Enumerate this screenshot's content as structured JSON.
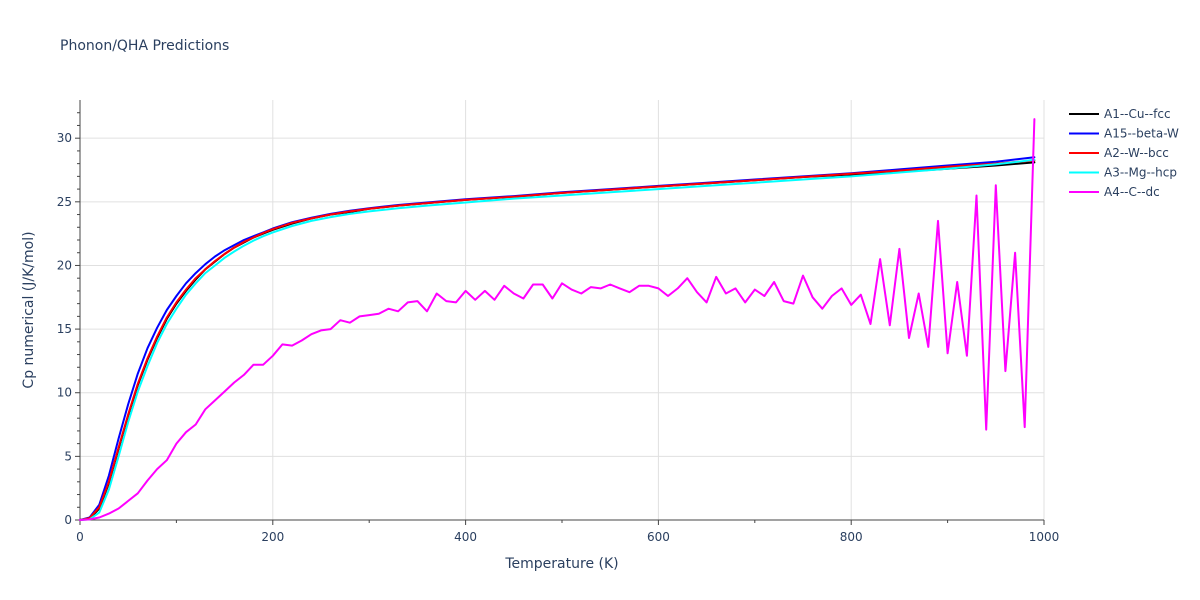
{
  "chart_data": {
    "type": "line",
    "title": "Phonon/QHA Predictions",
    "xlabel": "Temperature (K)",
    "ylabel": "Cp numerical (J/K/mol)",
    "xlim": [
      0,
      1000
    ],
    "ylim": [
      0,
      33
    ],
    "xticks": [
      0,
      200,
      400,
      600,
      800,
      1000
    ],
    "xtick_labels": [
      "0",
      "200",
      "400",
      "600",
      "800",
      "1000"
    ],
    "yticks": [
      0,
      5,
      10,
      15,
      20,
      25,
      30
    ],
    "ytick_labels": [
      "0",
      "5",
      "10",
      "15",
      "20",
      "25",
      "30"
    ],
    "grid": true,
    "legend_position": "top-right",
    "series": [
      {
        "name": "A1--Cu--fcc",
        "color": "#000000",
        "x": [
          0,
          10,
          20,
          30,
          40,
          50,
          60,
          70,
          80,
          90,
          100,
          110,
          120,
          130,
          140,
          150,
          160,
          170,
          180,
          190,
          200,
          220,
          240,
          260,
          280,
          300,
          330,
          360,
          400,
          450,
          500,
          550,
          600,
          650,
          700,
          750,
          800,
          850,
          900,
          950,
          990
        ],
        "y": [
          0,
          0.1,
          0.9,
          2.9,
          5.6,
          8.2,
          10.6,
          12.6,
          14.3,
          15.8,
          17.0,
          18.0,
          18.9,
          19.7,
          20.3,
          20.9,
          21.4,
          21.8,
          22.2,
          22.5,
          22.8,
          23.3,
          23.7,
          24.0,
          24.2,
          24.45,
          24.7,
          24.9,
          25.15,
          25.4,
          25.7,
          25.95,
          26.2,
          26.45,
          26.7,
          26.95,
          27.15,
          27.35,
          27.6,
          27.85,
          28.1
        ]
      },
      {
        "name": "A15--beta-W",
        "color": "#0000ff",
        "x": [
          0,
          10,
          20,
          30,
          40,
          50,
          60,
          70,
          80,
          90,
          100,
          110,
          120,
          130,
          140,
          150,
          160,
          170,
          180,
          190,
          200,
          220,
          240,
          260,
          280,
          300,
          330,
          360,
          400,
          450,
          500,
          550,
          600,
          650,
          700,
          750,
          800,
          850,
          900,
          950,
          990
        ],
        "y": [
          0,
          0.2,
          1.2,
          3.5,
          6.4,
          9.1,
          11.5,
          13.5,
          15.1,
          16.5,
          17.6,
          18.6,
          19.4,
          20.1,
          20.7,
          21.2,
          21.6,
          22.0,
          22.3,
          22.6,
          22.9,
          23.4,
          23.75,
          24.05,
          24.3,
          24.5,
          24.75,
          24.95,
          25.2,
          25.45,
          25.75,
          26.0,
          26.25,
          26.5,
          26.75,
          27.0,
          27.25,
          27.55,
          27.85,
          28.15,
          28.5
        ]
      },
      {
        "name": "A2--W--bcc",
        "color": "#ff0000",
        "x": [
          0,
          10,
          20,
          30,
          40,
          50,
          60,
          70,
          80,
          90,
          100,
          110,
          120,
          130,
          140,
          150,
          160,
          170,
          180,
          190,
          200,
          220,
          240,
          260,
          280,
          300,
          330,
          360,
          400,
          450,
          500,
          550,
          600,
          650,
          700,
          750,
          800,
          850,
          900,
          950,
          990
        ],
        "y": [
          0,
          0.15,
          1.0,
          3.0,
          5.7,
          8.3,
          10.7,
          12.7,
          14.4,
          15.9,
          17.1,
          18.1,
          19.0,
          19.7,
          20.35,
          20.9,
          21.4,
          21.85,
          22.2,
          22.55,
          22.85,
          23.35,
          23.7,
          24.0,
          24.25,
          24.45,
          24.7,
          24.9,
          25.15,
          25.4,
          25.7,
          25.95,
          26.2,
          26.45,
          26.7,
          26.95,
          27.2,
          27.45,
          27.75,
          28.0,
          28.25
        ]
      },
      {
        "name": "A3--Mg--hcp",
        "color": "#00ffff",
        "x": [
          0,
          10,
          20,
          30,
          40,
          50,
          60,
          70,
          80,
          90,
          100,
          110,
          120,
          130,
          140,
          150,
          160,
          170,
          180,
          190,
          200,
          220,
          240,
          260,
          280,
          300,
          330,
          360,
          400,
          450,
          500,
          550,
          600,
          650,
          700,
          750,
          800,
          850,
          900,
          950,
          990
        ],
        "y": [
          0,
          0.05,
          0.6,
          2.4,
          5.0,
          7.7,
          10.1,
          12.1,
          13.9,
          15.4,
          16.6,
          17.7,
          18.6,
          19.4,
          20.0,
          20.6,
          21.1,
          21.55,
          21.95,
          22.3,
          22.6,
          23.1,
          23.5,
          23.8,
          24.05,
          24.25,
          24.5,
          24.7,
          24.95,
          25.25,
          25.5,
          25.75,
          26.0,
          26.25,
          26.5,
          26.75,
          27.0,
          27.3,
          27.6,
          27.95,
          28.3
        ]
      },
      {
        "name": "A4--C--dc",
        "color": "#ff00ff",
        "x": [
          0,
          10,
          20,
          30,
          40,
          50,
          60,
          70,
          80,
          90,
          100,
          110,
          120,
          130,
          140,
          150,
          160,
          170,
          180,
          190,
          200,
          210,
          220,
          230,
          240,
          250,
          260,
          270,
          280,
          290,
          300,
          310,
          320,
          330,
          340,
          350,
          360,
          370,
          380,
          390,
          400,
          410,
          420,
          430,
          440,
          450,
          460,
          470,
          480,
          490,
          500,
          510,
          520,
          530,
          540,
          550,
          560,
          570,
          580,
          590,
          600,
          610,
          620,
          630,
          640,
          650,
          660,
          670,
          680,
          690,
          700,
          710,
          720,
          730,
          740,
          750,
          760,
          770,
          780,
          790,
          800,
          810,
          820,
          830,
          840,
          850,
          860,
          870,
          880,
          890,
          900,
          910,
          920,
          930,
          940,
          950,
          960,
          970,
          980,
          990
        ],
        "y": [
          0,
          0.05,
          0.2,
          0.5,
          0.9,
          1.5,
          2.1,
          3.1,
          4.0,
          4.7,
          6.0,
          6.9,
          7.5,
          8.7,
          9.4,
          10.1,
          10.8,
          11.4,
          12.2,
          12.2,
          12.9,
          13.8,
          13.7,
          14.1,
          14.6,
          14.9,
          15.0,
          15.7,
          15.5,
          16.0,
          16.1,
          16.2,
          16.6,
          16.4,
          17.1,
          17.2,
          16.4,
          17.8,
          17.2,
          17.1,
          18.0,
          17.3,
          18.0,
          17.3,
          18.4,
          17.8,
          17.4,
          18.5,
          18.5,
          17.4,
          18.6,
          18.1,
          17.8,
          18.3,
          18.2,
          18.5,
          18.2,
          17.9,
          18.4,
          18.4,
          18.2,
          17.6,
          18.2,
          19.0,
          17.9,
          17.1,
          19.1,
          17.8,
          18.2,
          17.1,
          18.1,
          17.6,
          18.7,
          17.2,
          17.0,
          19.2,
          17.5,
          16.6,
          17.6,
          18.2,
          16.9,
          17.7,
          15.4,
          20.5,
          15.3,
          21.3,
          14.3,
          17.8,
          13.6,
          23.5,
          13.1,
          18.7,
          12.9,
          25.5,
          7.1,
          26.3,
          11.7,
          21.0,
          7.3,
          31.5
        ]
      }
    ]
  }
}
